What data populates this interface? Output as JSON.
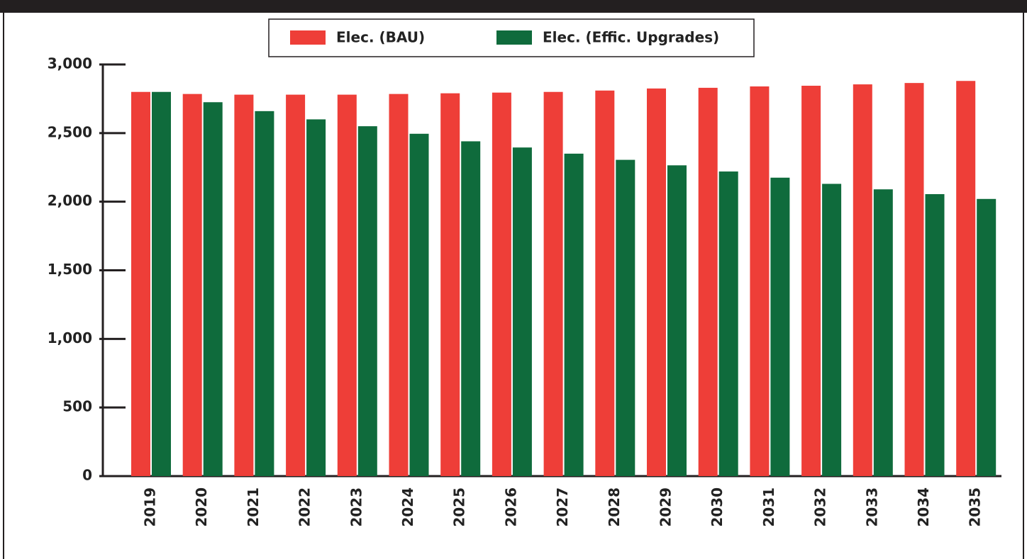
{
  "chart_data": {
    "type": "bar",
    "categories": [
      "2019",
      "2020",
      "2021",
      "2022",
      "2023",
      "2024",
      "2025",
      "2026",
      "2027",
      "2028",
      "2029",
      "2030",
      "2031",
      "2032",
      "2033",
      "2034",
      "2035"
    ],
    "series": [
      {
        "name": "Elec. (BAU)",
        "color": "#ee3e38",
        "values": [
          2800,
          2785,
          2780,
          2780,
          2780,
          2785,
          2790,
          2795,
          2800,
          2810,
          2825,
          2830,
          2840,
          2845,
          2855,
          2865,
          2880
        ]
      },
      {
        "name": "Elec. (Effic. Upgrades)",
        "color": "#0f6b3c",
        "values": [
          2800,
          2725,
          2660,
          2600,
          2550,
          2495,
          2440,
          2395,
          2350,
          2305,
          2265,
          2220,
          2175,
          2130,
          2090,
          2055,
          2020
        ]
      }
    ],
    "ylim": [
      0,
      3000
    ],
    "yticks": [
      0,
      500,
      {
        "value": 1000,
        "label": "1,000"
      },
      {
        "value": 1500,
        "label": "1,500"
      },
      {
        "value": 2000,
        "label": "2,000"
      },
      {
        "value": 2500,
        "label": "2,500"
      },
      {
        "value": 3000,
        "label": "3,000"
      }
    ],
    "legend": "top"
  }
}
